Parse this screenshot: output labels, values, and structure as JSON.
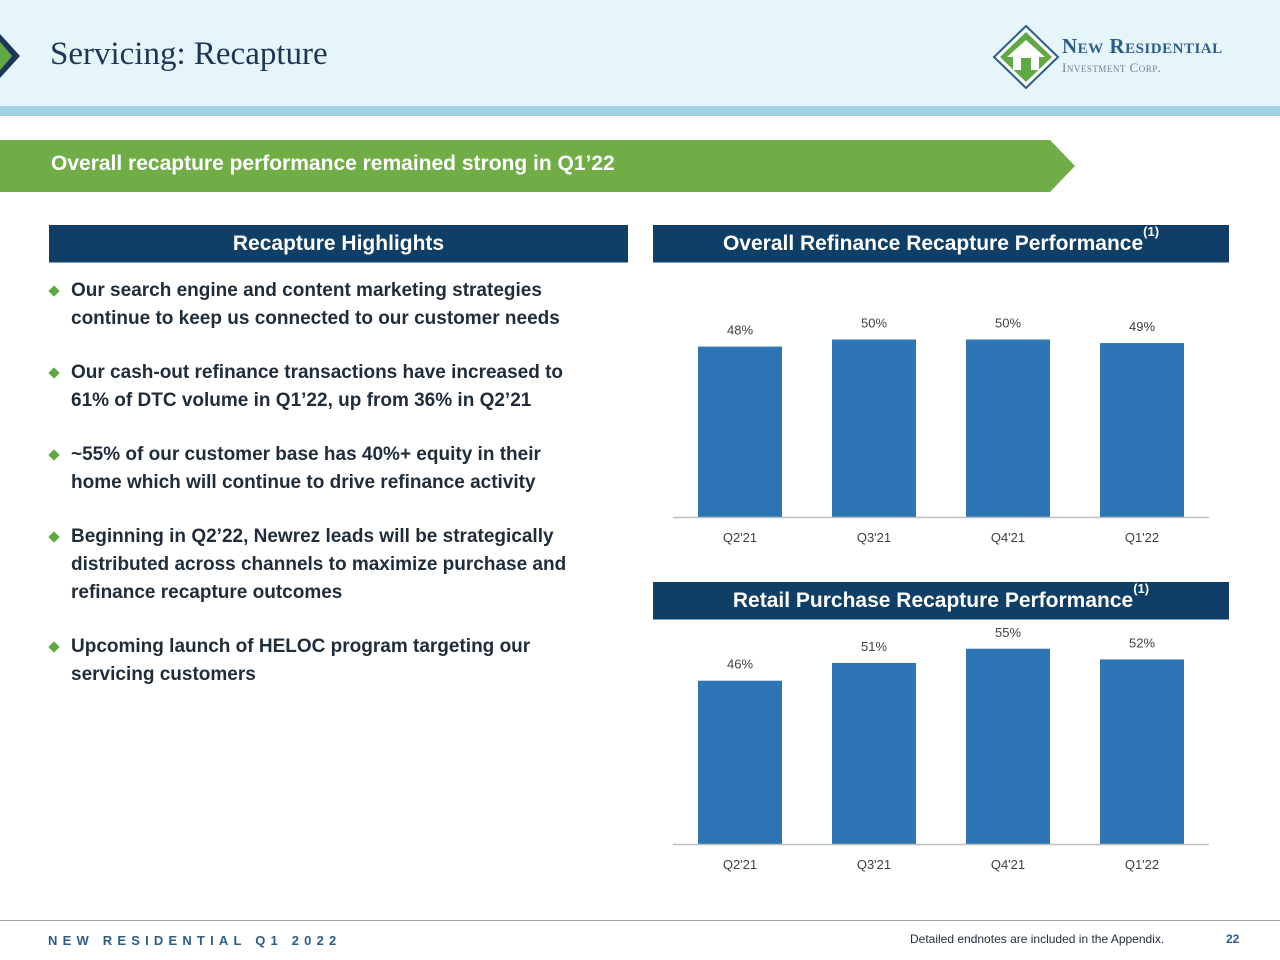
{
  "header": {
    "title": "Servicing: Recapture",
    "logo": {
      "name": "New Residential",
      "sub": "Investment Corp.",
      "icon": "house-diamond-icon"
    }
  },
  "banner": {
    "text": "Overall recapture performance remained strong in Q1’22"
  },
  "highlights": {
    "heading": "Recapture Highlights",
    "items": [
      {
        "line1": "Our search engine and content marketing strategies",
        "line2": "continue to keep us connected to our customer needs"
      },
      {
        "line1": "Our cash-out refinance transactions have increased to",
        "line2": "61% of DTC volume in Q1’22, up from 36% in Q2’21"
      },
      {
        "line1": "~55% of our customer base has 40%+ equity in their",
        "line2": "home which will continue to drive refinance activity"
      },
      {
        "line1": "Beginning in Q2’22, Newrez leads will be strategically",
        "line2": "distributed across channels to maximize purchase and",
        "line3": "refinance recapture outcomes"
      },
      {
        "line1": "Upcoming launch of HELOC program targeting our",
        "line2": "servicing customers"
      }
    ]
  },
  "chart_data": [
    {
      "type": "bar",
      "title": "Overall Refinance Recapture Performance",
      "title_sup": "(1)",
      "categories": [
        "Q2'21",
        "Q3'21",
        "Q4'21",
        "Q1'22"
      ],
      "values": [
        48,
        50,
        50,
        49
      ],
      "data_labels": [
        "48%",
        "50%",
        "50%",
        "49%"
      ],
      "color": "#2e75b6",
      "grid": false,
      "legend": "none"
    },
    {
      "type": "bar",
      "title": "Retail Purchase Recapture Performance",
      "title_sup": "(1)",
      "categories": [
        "Q2'21",
        "Q3'21",
        "Q4'21",
        "Q1'22"
      ],
      "values": [
        46,
        51,
        55,
        52
      ],
      "data_labels": [
        "46%",
        "51%",
        "55%",
        "52%"
      ],
      "color": "#2e75b6",
      "grid": false,
      "legend": "none"
    }
  ],
  "footer": {
    "left": "NEW RESIDENTIAL Q1 2022",
    "note": "Detailed endnotes are included in the Appendix.",
    "page": "22"
  },
  "colors": {
    "navy": "#0f3e66",
    "green": "#70ad47",
    "bar": "#2e75b6",
    "header_bg": "#e6f5fa"
  }
}
